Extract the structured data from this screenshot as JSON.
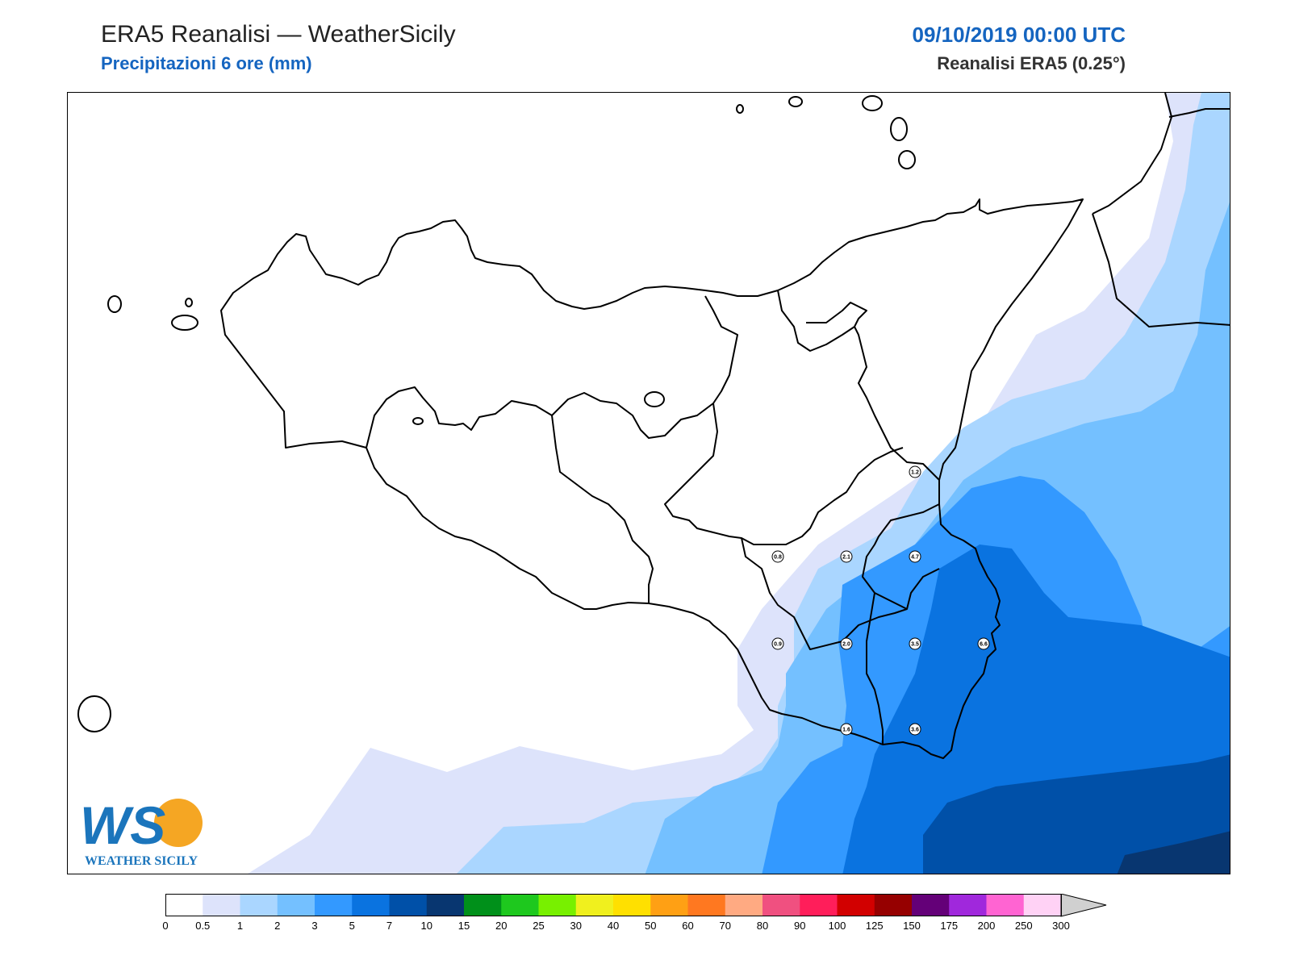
{
  "header": {
    "title": "ERA5 Reanalisi — WeatherSicily",
    "subtitle": "Precipitazioni 6 ore (mm)",
    "datetime": "09/10/2019 00:00 UTC",
    "source": "Reanalisi ERA5 (0.25°)"
  },
  "logo": {
    "letters": "WS",
    "text": "WEATHER SICILY"
  },
  "stations": [
    {
      "value": "1.2"
    },
    {
      "value": "0.8"
    },
    {
      "value": "2.1"
    },
    {
      "value": "4.7"
    },
    {
      "value": "0.9"
    },
    {
      "value": "2.0"
    },
    {
      "value": "3.5"
    },
    {
      "value": "6.6"
    },
    {
      "value": "1.6"
    },
    {
      "value": "3.6"
    }
  ],
  "legend": {
    "ticks": [
      "0",
      "0.5",
      "1",
      "2",
      "3",
      "5",
      "7",
      "10",
      "15",
      "20",
      "25",
      "30",
      "40",
      "50",
      "60",
      "70",
      "80",
      "90",
      "100",
      "125",
      "150",
      "175",
      "200",
      "250",
      "300"
    ],
    "colors": [
      "#ffffff",
      "#dde3fb",
      "#aad6ff",
      "#74c0ff",
      "#3399ff",
      "#0a73e0",
      "#0050a8",
      "#083670",
      "#00901a",
      "#1ec81e",
      "#78f000",
      "#f0f01e",
      "#ffe000",
      "#ffa014",
      "#ff7820",
      "#ffaa82",
      "#f05080",
      "#ff1e5a",
      "#d20000",
      "#960000",
      "#640078",
      "#a028dc",
      "#ff64d2",
      "#ffd2f5"
    ],
    "over_color": "#d0d0d0"
  }
}
